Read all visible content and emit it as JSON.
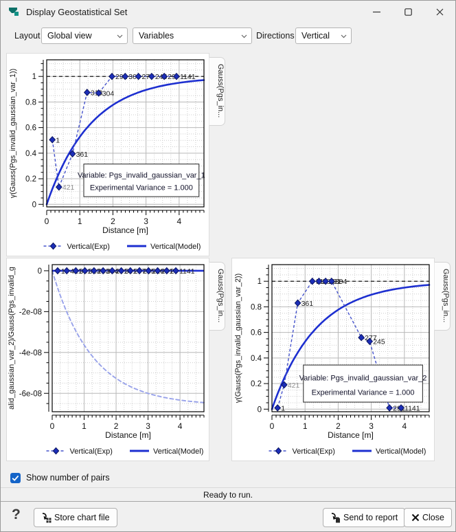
{
  "window": {
    "title": "Display Geostatistical Set",
    "controls": {
      "minimize": "minimize",
      "maximize": "maximize",
      "close": "close"
    }
  },
  "toolbar": {
    "layout_label": "Layout",
    "layout_value": "Global view",
    "variables_value": "Variables",
    "directions_label": "Directions",
    "directions_value": "Vertical"
  },
  "footer": {
    "checkbox_label": "Show number of pairs",
    "checkbox_checked": true,
    "status": "Ready to run.",
    "help_label": "?",
    "store_button": "Store chart file",
    "send_button": "Send to report",
    "close_button": "Close"
  },
  "colors": {
    "model_blue": "#1d2fd0",
    "model_dashed_blue": "#98a2ea",
    "exp_line_blue": "#4553cc",
    "diamond_fill": "#1c2eb8",
    "diamond_stroke": "#0c1560",
    "grid_major": "#b8b8b8",
    "grid_minor": "#cccccc",
    "accent_teal": "#0d7068",
    "checkbox_blue": "#1464c8"
  },
  "chart_data": [
    {
      "id": "variogram_var_1",
      "type": "line",
      "xlabel": "Distance [m]",
      "ylabel": "γ(Gauss(Pgs_invalid_gaussian_var_1))",
      "side_tab": "Gauss(Pgs_in...",
      "xlim": [
        0,
        4.75
      ],
      "ylim": [
        -0.02,
        1.13
      ],
      "xmajor": 1,
      "xminor": 0.25,
      "xtick_minor": 0.125,
      "ymajor": 0.2,
      "yminor": 0.05,
      "xticks": [
        {
          "v": 0,
          "l": "0"
        },
        {
          "v": 1,
          "l": "1"
        },
        {
          "v": 2,
          "l": "2"
        },
        {
          "v": 3,
          "l": "3"
        },
        {
          "v": 4,
          "l": "4"
        }
      ],
      "yticks": [
        {
          "v": 0,
          "l": "0"
        },
        {
          "v": 0.2,
          "l": "0.2"
        },
        {
          "v": 0.4,
          "l": "0.4"
        },
        {
          "v": 0.6,
          "l": "0.6"
        },
        {
          "v": 0.8,
          "l": "0.8"
        },
        {
          "v": 1,
          "l": "1"
        }
      ],
      "sill_line": 1,
      "zero_line": false,
      "model": {
        "name": "Vertical(Model)",
        "form": "exponential",
        "sill": 1,
        "rate": 0.75,
        "style": "solid"
      },
      "exp_series": {
        "name": "Vertical(Exp)",
        "points": [
          {
            "x": 0.17,
            "y": 0.505,
            "n": "1"
          },
          {
            "x": 0.37,
            "y": 0.135,
            "n": "421",
            "muted": true
          },
          {
            "x": 0.78,
            "y": 0.395,
            "n": "361"
          },
          {
            "x": 1.22,
            "y": 0.875,
            "n": "313"
          },
          {
            "x": 1.57,
            "y": 0.87,
            "n": "304"
          },
          {
            "x": 1.97,
            "y": 1.0,
            "n": "291"
          },
          {
            "x": 2.37,
            "y": 1.0,
            "n": "304"
          },
          {
            "x": 2.77,
            "y": 1.0,
            "n": "277"
          },
          {
            "x": 3.17,
            "y": 1.0,
            "n": "245"
          },
          {
            "x": 3.55,
            "y": 1.0,
            "n": "29"
          },
          {
            "x": 3.92,
            "y": 1.0,
            "n": "1141"
          }
        ]
      },
      "annotation": {
        "x_left": 1.12,
        "x_right": 4.6,
        "y_top": 0.315,
        "y_bottom": 0.06,
        "line1": "Variable: Pgs_invalid_gaussian_var_1",
        "line2": "Experimental Variance = 1.000"
      },
      "legend": [
        "Vertical(Exp)",
        "Vertical(Model)"
      ]
    },
    {
      "id": "cross_variogram_var2_var1",
      "type": "line",
      "xlabel": "Distance [m]",
      "ylabel": "alid_gaussian_var_2)/Gauss(Pgs_invalid_g",
      "side_tab": "Gauss(Pgs_in...",
      "xlim": [
        0,
        4.75
      ],
      "ylim": [
        -6.9e-08,
        3e-09
      ],
      "xmajor": 1,
      "xminor": 0.25,
      "xtick_minor": 0.125,
      "ymajor": 2e-08,
      "yminor": 5e-09,
      "xticks": [
        {
          "v": 0,
          "l": "0"
        },
        {
          "v": 1,
          "l": "1"
        },
        {
          "v": 2,
          "l": "2"
        },
        {
          "v": 3,
          "l": "3"
        },
        {
          "v": 4,
          "l": "4"
        }
      ],
      "yticks": [
        {
          "v": 0,
          "l": "0"
        },
        {
          "v": -2e-08,
          "l": "-2e-08"
        },
        {
          "v": -4e-08,
          "l": "-4e-08"
        },
        {
          "v": -6e-08,
          "l": "-6e-08"
        }
      ],
      "sill_line": null,
      "zero_line": true,
      "model": {
        "name": "Vertical(Model)",
        "form": "exponential",
        "sill": -6.6e-08,
        "rate": 0.8,
        "style": "dashed"
      },
      "exp_series": {
        "name": "Vertical(Exp)",
        "points": [
          {
            "x": 0.17,
            "y": 0,
            "n": "1"
          },
          {
            "x": 0.455,
            "y": 0,
            "n": "421"
          },
          {
            "x": 0.739,
            "y": 0,
            "n": "361"
          },
          {
            "x": 1.024,
            "y": 0,
            "n": "313"
          },
          {
            "x": 1.308,
            "y": 0,
            "n": "263"
          },
          {
            "x": 1.593,
            "y": 0,
            "n": "304"
          },
          {
            "x": 1.877,
            "y": 0,
            "n": "291"
          },
          {
            "x": 2.162,
            "y": 0,
            "n": "301"
          },
          {
            "x": 2.446,
            "y": 0,
            "n": "277"
          },
          {
            "x": 2.731,
            "y": 0,
            "n": "245"
          },
          {
            "x": 3.015,
            "y": 0,
            "n": "216"
          },
          {
            "x": 3.3,
            "y": 0,
            "n": "291"
          },
          {
            "x": 3.584,
            "y": 0,
            "n": "29"
          },
          {
            "x": 3.869,
            "y": 0,
            "n": "1141"
          }
        ]
      },
      "annotation": null,
      "legend": [
        "Vertical(Exp)",
        "Vertical(Model)"
      ]
    },
    {
      "id": "variogram_var_2",
      "type": "line",
      "xlabel": "Distance [m]",
      "ylabel": "γ(Gauss(Pgs_invalid_gaussian_var_2))",
      "side_tab": "Gauss(Pgs_in...",
      "xlim": [
        0,
        4.75
      ],
      "ylim": [
        -0.02,
        1.13
      ],
      "xmajor": 1,
      "xminor": 0.25,
      "xtick_minor": 0.125,
      "ymajor": 0.2,
      "yminor": 0.05,
      "xticks": [
        {
          "v": 0,
          "l": "0"
        },
        {
          "v": 1,
          "l": "1"
        },
        {
          "v": 2,
          "l": "2"
        },
        {
          "v": 3,
          "l": "3"
        },
        {
          "v": 4,
          "l": "4"
        }
      ],
      "yticks": [
        {
          "v": 0,
          "l": "0"
        },
        {
          "v": 0.2,
          "l": "0.2"
        },
        {
          "v": 0.4,
          "l": "0.4"
        },
        {
          "v": 0.6,
          "l": "0.6"
        },
        {
          "v": 0.8,
          "l": "0.8"
        },
        {
          "v": 1,
          "l": "1"
        }
      ],
      "sill_line": 1,
      "zero_line": false,
      "model": {
        "name": "Vertical(Model)",
        "form": "exponential",
        "sill": 1,
        "rate": 0.75,
        "style": "solid"
      },
      "exp_series": {
        "name": "Vertical(Exp)",
        "points": [
          {
            "x": 0.17,
            "y": 0.01,
            "n": "1"
          },
          {
            "x": 0.37,
            "y": 0.19,
            "n": "421",
            "muted": true
          },
          {
            "x": 0.78,
            "y": 0.83,
            "n": "361"
          },
          {
            "x": 1.22,
            "y": 1.0,
            "n": "313"
          },
          {
            "x": 1.42,
            "y": 1.0,
            "n": "304"
          },
          {
            "x": 1.62,
            "y": 1.0,
            "n": "291"
          },
          {
            "x": 1.8,
            "y": 1.0,
            "n": "304"
          },
          {
            "x": 2.7,
            "y": 0.56,
            "n": "277"
          },
          {
            "x": 2.95,
            "y": 0.53,
            "n": "245"
          },
          {
            "x": 3.55,
            "y": 0.01,
            "n": "291"
          },
          {
            "x": 3.9,
            "y": 0.01,
            "n": "1141"
          }
        ]
      },
      "annotation": {
        "x_left": 0.95,
        "x_right": 4.55,
        "y_top": 0.345,
        "y_bottom": 0.055,
        "line1": "Variable: Pgs_invalid_gaussian_var_2",
        "line2": "Experimental Variance = 1.000"
      },
      "legend": [
        "Vertical(Exp)",
        "Vertical(Model)"
      ]
    }
  ]
}
